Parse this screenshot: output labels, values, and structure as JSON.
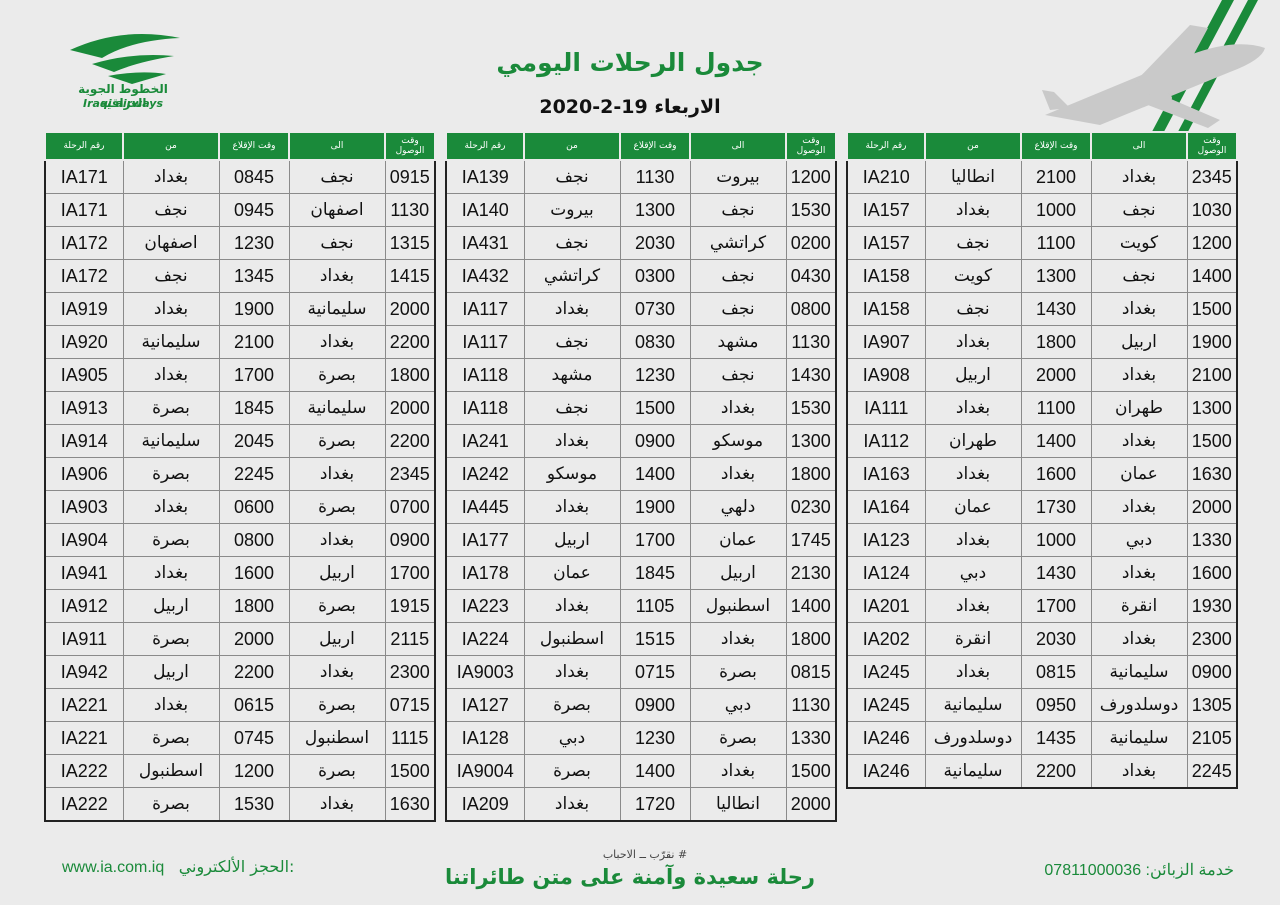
{
  "header": {
    "title": "جدول الرحلات اليومي",
    "date": "الاربعاء 19-2-2020",
    "logo_ar": "الخطوط الجوية العراقية",
    "logo_en": "Iraqi airways"
  },
  "columns": [
    "وقت الوصول",
    "الى",
    "وقت الإقلاع",
    "من",
    "رقم الرحلة"
  ],
  "tables": [
    {
      "rows": [
        [
          "2345",
          "بغداد",
          "2100",
          "انطاليا",
          "IA210"
        ],
        [
          "1030",
          "نجف",
          "1000",
          "بغداد",
          "IA157"
        ],
        [
          "1200",
          "كويت",
          "1100",
          "نجف",
          "IA157"
        ],
        [
          "1400",
          "نجف",
          "1300",
          "كويت",
          "IA158"
        ],
        [
          "1500",
          "بغداد",
          "1430",
          "نجف",
          "IA158"
        ],
        [
          "1900",
          "اربيل",
          "1800",
          "بغداد",
          "IA907"
        ],
        [
          "2100",
          "بغداد",
          "2000",
          "اربيل",
          "IA908"
        ],
        [
          "1300",
          "طهران",
          "1100",
          "بغداد",
          "IA111"
        ],
        [
          "1500",
          "بغداد",
          "1400",
          "طهران",
          "IA112"
        ],
        [
          "1630",
          "عمان",
          "1600",
          "بغداد",
          "IA163"
        ],
        [
          "2000",
          "بغداد",
          "1730",
          "عمان",
          "IA164"
        ],
        [
          "1330",
          "دبي",
          "1000",
          "بغداد",
          "IA123"
        ],
        [
          "1600",
          "بغداد",
          "1430",
          "دبي",
          "IA124"
        ],
        [
          "1930",
          "انقرة",
          "1700",
          "بغداد",
          "IA201"
        ],
        [
          "2300",
          "بغداد",
          "2030",
          "انقرة",
          "IA202"
        ],
        [
          "0900",
          "سليمانية",
          "0815",
          "بغداد",
          "IA245"
        ],
        [
          "1305",
          "دوسلدورف",
          "0950",
          "سليمانية",
          "IA245"
        ],
        [
          "2105",
          "سليمانية",
          "1435",
          "دوسلدورف",
          "IA246"
        ],
        [
          "2245",
          "بغداد",
          "2200",
          "سليمانية",
          "IA246"
        ]
      ]
    },
    {
      "rows": [
        [
          "1200",
          "بيروت",
          "1130",
          "نجف",
          "IA139"
        ],
        [
          "1530",
          "نجف",
          "1300",
          "بيروت",
          "IA140"
        ],
        [
          "0200",
          "كراتشي",
          "2030",
          "نجف",
          "IA431"
        ],
        [
          "0430",
          "نجف",
          "0300",
          "كراتشي",
          "IA432"
        ],
        [
          "0800",
          "نجف",
          "0730",
          "بغداد",
          "IA117"
        ],
        [
          "1130",
          "مشهد",
          "0830",
          "نجف",
          "IA117"
        ],
        [
          "1430",
          "نجف",
          "1230",
          "مشهد",
          "IA118"
        ],
        [
          "1530",
          "بغداد",
          "1500",
          "نجف",
          "IA118"
        ],
        [
          "1300",
          "موسكو",
          "0900",
          "بغداد",
          "IA241"
        ],
        [
          "1800",
          "بغداد",
          "1400",
          "موسكو",
          "IA242"
        ],
        [
          "0230",
          "دلهي",
          "1900",
          "بغداد",
          "IA445"
        ],
        [
          "1745",
          "عمان",
          "1700",
          "اربيل",
          "IA177"
        ],
        [
          "2130",
          "اربيل",
          "1845",
          "عمان",
          "IA178"
        ],
        [
          "1400",
          "اسطنبول",
          "1105",
          "بغداد",
          "IA223"
        ],
        [
          "1800",
          "بغداد",
          "1515",
          "اسطنبول",
          "IA224"
        ],
        [
          "0815",
          "بصرة",
          "0715",
          "بغداد",
          "IA9003"
        ],
        [
          "1130",
          "دبي",
          "0900",
          "بصرة",
          "IA127"
        ],
        [
          "1330",
          "بصرة",
          "1230",
          "دبي",
          "IA128"
        ],
        [
          "1500",
          "بغداد",
          "1400",
          "بصرة",
          "IA9004"
        ],
        [
          "2000",
          "انطاليا",
          "1720",
          "بغداد",
          "IA209"
        ]
      ]
    },
    {
      "rows": [
        [
          "0915",
          "نجف",
          "0845",
          "بغداد",
          "IA171"
        ],
        [
          "1130",
          "اصفهان",
          "0945",
          "نجف",
          "IA171"
        ],
        [
          "1315",
          "نجف",
          "1230",
          "اصفهان",
          "IA172"
        ],
        [
          "1415",
          "بغداد",
          "1345",
          "نجف",
          "IA172"
        ],
        [
          "2000",
          "سليمانية",
          "1900",
          "بغداد",
          "IA919"
        ],
        [
          "2200",
          "بغداد",
          "2100",
          "سليمانية",
          "IA920"
        ],
        [
          "1800",
          "بصرة",
          "1700",
          "بغداد",
          "IA905"
        ],
        [
          "2000",
          "سليمانية",
          "1845",
          "بصرة",
          "IA913"
        ],
        [
          "2200",
          "بصرة",
          "2045",
          "سليمانية",
          "IA914"
        ],
        [
          "2345",
          "بغداد",
          "2245",
          "بصرة",
          "IA906"
        ],
        [
          "0700",
          "بصرة",
          "0600",
          "بغداد",
          "IA903"
        ],
        [
          "0900",
          "بغداد",
          "0800",
          "بصرة",
          "IA904"
        ],
        [
          "1700",
          "اربيل",
          "1600",
          "بغداد",
          "IA941"
        ],
        [
          "1915",
          "بصرة",
          "1800",
          "اربيل",
          "IA912"
        ],
        [
          "2115",
          "اربيل",
          "2000",
          "بصرة",
          "IA911"
        ],
        [
          "2300",
          "بغداد",
          "2200",
          "اربيل",
          "IA942"
        ],
        [
          "0715",
          "بصرة",
          "0615",
          "بغداد",
          "IA221"
        ],
        [
          "1115",
          "اسطنبول",
          "0745",
          "بصرة",
          "IA221"
        ],
        [
          "1500",
          "بصرة",
          "1200",
          "اسطنبول",
          "IA222"
        ],
        [
          "1630",
          "بغداد",
          "1530",
          "بصرة",
          "IA222"
        ]
      ]
    }
  ],
  "footer": {
    "website": "www.ia.com.iq",
    "booking_label": "الحجز الألكتروني:",
    "customer_service": "خدمة الزبائن: 07811000036",
    "hashtag": "# نقرّب ــ الاحباب",
    "slogan": "رحلة سعيدة وآمنة على متن طائراتنا"
  },
  "colors": {
    "brand_green": "#1a8a3a",
    "background": "#ebebeb"
  }
}
